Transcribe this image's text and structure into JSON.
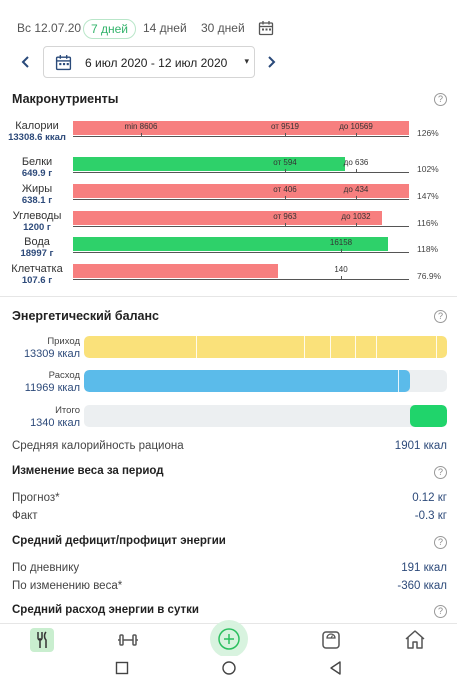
{
  "period": {
    "tabs": [
      {
        "label": "Вс 12.07.20"
      },
      {
        "label": "7 дней",
        "active": true
      },
      {
        "label": "14 дней"
      },
      {
        "label": "30 дней"
      }
    ],
    "calendar_icon": "calendar-icon"
  },
  "range": {
    "text": "6 июл 2020 - 12 июл 2020",
    "prev_icon": "chevron-left-icon",
    "next_icon": "chevron-right-icon",
    "caret": "▾"
  },
  "macros": {
    "title": "Макронутриенты",
    "help": "?",
    "rows": [
      {
        "name": "Калории",
        "value": "13308.6 ккал",
        "fill_pct": 126,
        "color": "#f77f7f",
        "pct_label": "126%",
        "ticks": [
          "min 8606",
          "от 9519",
          "до 10569"
        ]
      },
      {
        "name": "Белки",
        "value": "649.9 г",
        "fill_pct": 102,
        "color": "#2ed16a",
        "pct_label": "102%",
        "ticks": [
          "от 594",
          "до 636"
        ]
      },
      {
        "name": "Жиры",
        "value": "638.1 г",
        "fill_pct": 147,
        "color": "#f77f7f",
        "pct_label": "147%",
        "ticks": [
          "от 406",
          "до 434"
        ]
      },
      {
        "name": "Углеводы",
        "value": "1200 г",
        "fill_pct": 116,
        "color": "#f77f7f",
        "pct_label": "116%",
        "ticks": [
          "от 963",
          "до 1032"
        ]
      },
      {
        "name": "Вода",
        "value": "18997 г",
        "fill_pct": 118,
        "color": "#2ed16a",
        "pct_label": "118%",
        "ticks": [
          "16158"
        ]
      },
      {
        "name": "Клетчатка",
        "value": "107.6 г",
        "fill_pct": 76.9,
        "color": "#f77f7f",
        "pct_label": "76.9%",
        "ticks": [
          "140"
        ]
      }
    ]
  },
  "energy": {
    "title": "Энергетический баланс",
    "help": "?",
    "income": {
      "name": "Приход",
      "value": "13309 ккал",
      "color": "#fae17a",
      "fill_fraction": 1.0
    },
    "expense": {
      "name": "Расход",
      "value": "11969 ккал",
      "color": "#5bbbea",
      "fill_fraction": 0.899
    },
    "total": {
      "name": "Итого",
      "value": "1340 ккал",
      "color": "#20d46b",
      "fill_fraction": 0.101
    },
    "avg_label": "Средняя калорийность рациона",
    "avg_value": "1901 ккал"
  },
  "weight_change": {
    "title": "Изменение веса за период",
    "help": "?",
    "forecast_label": "Прогноз*",
    "forecast_value": "0.12 кг",
    "fact_label": "Факт",
    "fact_value": "-0.3 кг"
  },
  "deficit": {
    "title": "Средний дефицит/профицит энергии",
    "help": "?",
    "diary_label": "По дневнику",
    "diary_value": "191 ккал",
    "weight_label": "По изменению веса*",
    "weight_value": "-360 ккал"
  },
  "daily_expense": {
    "title": "Средний расход энергии в сутки",
    "help": "?"
  },
  "bottom_nav": {
    "items": [
      "food-icon",
      "dumbbell-icon",
      "add-icon",
      "scale-icon",
      "home-icon"
    ]
  },
  "system_nav": [
    "recent-apps-icon",
    "home-circle-icon",
    "back-icon"
  ]
}
